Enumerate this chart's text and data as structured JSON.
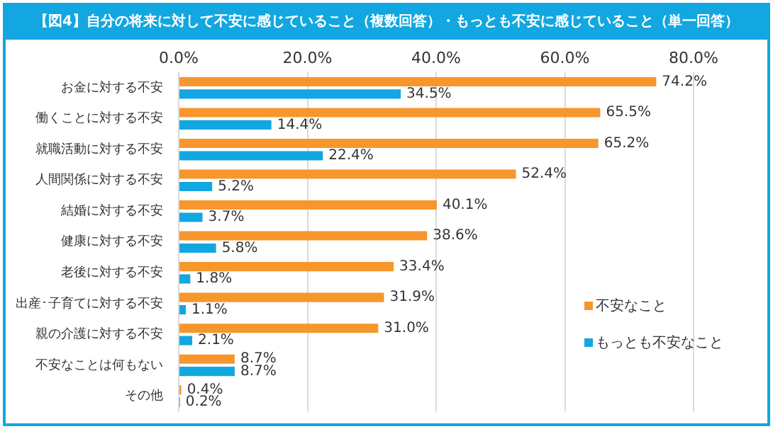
{
  "chart_data": {
    "type": "bar",
    "orientation": "horizontal",
    "title": "【図4】自分の将来に対して不安に感じていること（複数回答）・もっとも不安に感じていること（単一回答）",
    "categories": [
      "お金に対する不安",
      "働くことに対する不安",
      "就職活動に対する不安",
      "人間関係に対する不安",
      "結婚に対する不安",
      "健康に対する不安",
      "老後に対する不安",
      "出産･子育てに対する不安",
      "親の介護に対する不安",
      "不安なことは何もない",
      "その他"
    ],
    "series": [
      {
        "name": "不安なこと",
        "color": "#f7962d",
        "values": [
          74.2,
          65.5,
          65.2,
          52.4,
          40.1,
          38.6,
          33.4,
          31.9,
          31.0,
          8.7,
          0.4
        ],
        "value_labels": [
          "74.2%",
          "65.5%",
          "65.2%",
          "52.4%",
          "40.1%",
          "38.6%",
          "33.4%",
          "31.9%",
          "31.0%",
          "8.7%",
          "0.4%"
        ]
      },
      {
        "name": "もっとも不安なこと",
        "color": "#12a7e0",
        "values": [
          34.5,
          14.4,
          22.4,
          5.2,
          3.7,
          5.8,
          1.8,
          1.1,
          2.1,
          8.7,
          0.2
        ],
        "value_labels": [
          "34.5%",
          "14.4%",
          "22.4%",
          "5.2%",
          "3.7%",
          "5.8%",
          "1.8%",
          "1.1%",
          "2.1%",
          "8.7%",
          "0.2%"
        ]
      }
    ],
    "xlim": [
      0,
      80
    ],
    "xticks": [
      {
        "value": 0,
        "label": "0.0%"
      },
      {
        "value": 20,
        "label": "20.0%"
      },
      {
        "value": 40,
        "label": "40.0%"
      },
      {
        "value": 60,
        "label": "60.0%"
      },
      {
        "value": 80,
        "label": "80.0%"
      }
    ],
    "grid": "x",
    "legend": "bottom right"
  }
}
